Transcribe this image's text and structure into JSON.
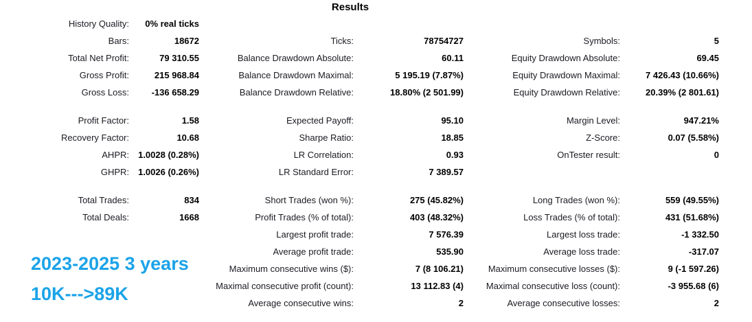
{
  "title": "Results",
  "colors": {
    "annotation_blue": "#1ba3e8",
    "text": "#000000",
    "background": "#ffffff"
  },
  "annotation": {
    "line1": "2023-2025 3 years",
    "line2": "10K--->89K"
  },
  "rows": [
    {
      "cells": [
        "History Quality:",
        "0% real ticks",
        "",
        "",
        "",
        ""
      ]
    },
    {
      "cells": [
        "Bars:",
        "18672",
        "Ticks:",
        "78754727",
        "Symbols:",
        "5"
      ]
    },
    {
      "cells": [
        "Total Net Profit:",
        "79 310.55",
        "Balance Drawdown Absolute:",
        "60.11",
        "Equity Drawdown Absolute:",
        "69.45"
      ]
    },
    {
      "cells": [
        "Gross Profit:",
        "215 968.84",
        "Balance Drawdown Maximal:",
        "5 195.19 (7.87%)",
        "Equity Drawdown Maximal:",
        "7 426.43 (10.66%)"
      ]
    },
    {
      "cells": [
        "Gross Loss:",
        "-136 658.29",
        "Balance Drawdown Relative:",
        "18.80% (2 501.99)",
        "Equity Drawdown Relative:",
        "20.39% (2 801.61)"
      ]
    },
    {
      "spacer": true
    },
    {
      "cells": [
        "Profit Factor:",
        "1.58",
        "Expected Payoff:",
        "95.10",
        "Margin Level:",
        "947.21%"
      ]
    },
    {
      "cells": [
        "Recovery Factor:",
        "10.68",
        "Sharpe Ratio:",
        "18.85",
        "Z-Score:",
        "0.07 (5.58%)"
      ]
    },
    {
      "cells": [
        "AHPR:",
        "1.0028 (0.28%)",
        "LR Correlation:",
        "0.93",
        "OnTester result:",
        "0"
      ]
    },
    {
      "cells": [
        "GHPR:",
        "1.0026 (0.26%)",
        "LR Standard Error:",
        "7 389.57",
        "",
        ""
      ]
    },
    {
      "spacer": true
    },
    {
      "cells": [
        "Total Trades:",
        "834",
        "Short Trades (won %):",
        "275 (45.82%)",
        "Long Trades (won %):",
        "559 (49.55%)"
      ]
    },
    {
      "cells": [
        "Total Deals:",
        "1668",
        "Profit Trades (% of total):",
        "403 (48.32%)",
        "Loss Trades (% of total):",
        "431 (51.68%)"
      ]
    },
    {
      "cells": [
        "",
        "",
        "Largest profit trade:",
        "7 576.39",
        "Largest loss trade:",
        "-1 332.50"
      ]
    },
    {
      "cells": [
        "",
        "",
        "Average profit trade:",
        "535.90",
        "Average loss trade:",
        "-317.07"
      ]
    },
    {
      "cells": [
        "",
        "",
        "Maximum consecutive wins ($):",
        "7 (8 106.21)",
        "Maximum consecutive losses ($):",
        "9 (-1 597.26)"
      ]
    },
    {
      "cells": [
        "",
        "",
        "Maximal consecutive profit (count):",
        "13 112.83 (4)",
        "Maximal consecutive loss (count):",
        "-3 955.68 (6)"
      ]
    },
    {
      "cells": [
        "",
        "",
        "Average consecutive wins:",
        "2",
        "Average consecutive losses:",
        "2"
      ]
    }
  ]
}
